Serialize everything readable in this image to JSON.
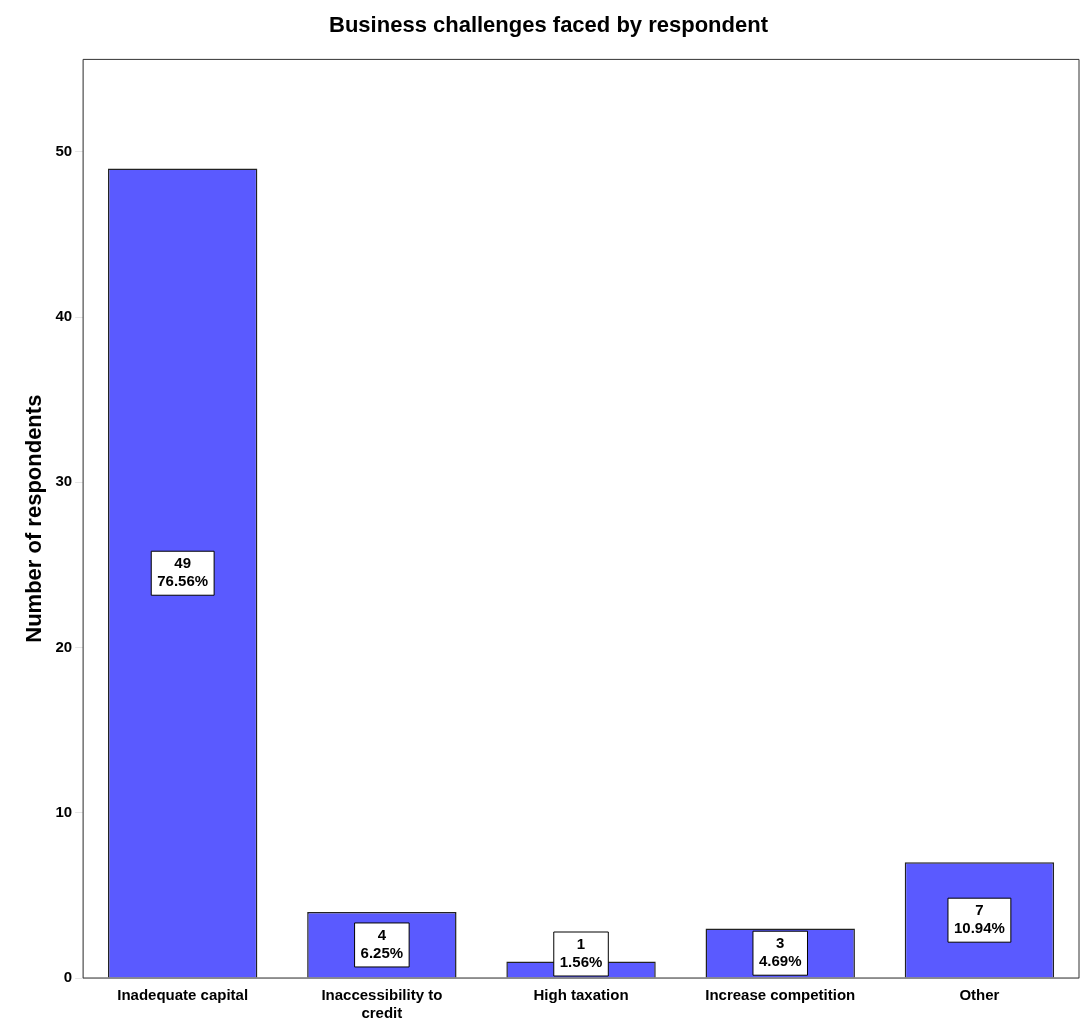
{
  "chart_data": {
    "type": "bar",
    "title": "Business challenges faced by respondent",
    "ylabel": "Number of respondents",
    "categories": [
      "Inadequate capital",
      "Inaccessibility to credit",
      "High taxation",
      "Increase competition",
      "Other"
    ],
    "values": [
      49,
      4,
      1,
      3,
      7
    ],
    "value_labels": [
      "49\n76.56%",
      "4\n6.25%",
      "1\n1.56%",
      "3\n4.69%",
      "7\n10.94%"
    ],
    "color": "#5a5aff",
    "ylim": [
      0,
      55.6
    ],
    "yticks": [
      0,
      10,
      20,
      30,
      40,
      50
    ],
    "grid": false,
    "legend": false
  }
}
